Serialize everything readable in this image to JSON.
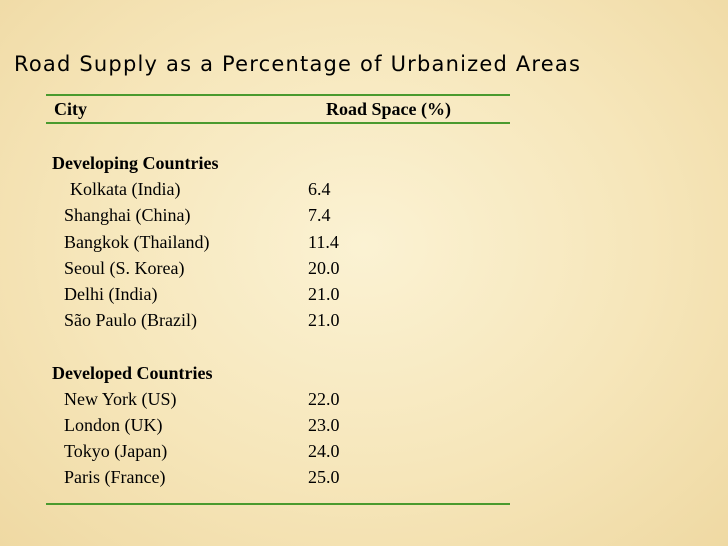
{
  "title": "Road Supply as a Percentage of Urbanized Areas",
  "table": {
    "headers": {
      "city": "City",
      "road_space": "Road Space (%)"
    },
    "groups": [
      {
        "label": "Developing Countries",
        "rows": [
          {
            "city": "Kolkata (India)",
            "value": "6.4"
          },
          {
            "city": "Shanghai (China)",
            "value": "7.4"
          },
          {
            "city": "Bangkok (Thailand)",
            "value": "11.4"
          },
          {
            "city": "Seoul (S. Korea)",
            "value": "20.0"
          },
          {
            "city": "Delhi (India)",
            "value": "21.0"
          },
          {
            "city": "São Paulo (Brazil)",
            "value": "21.0"
          }
        ]
      },
      {
        "label": "Developed Countries",
        "rows": [
          {
            "city": "New York (US)",
            "value": "22.0"
          },
          {
            "city": "London (UK)",
            "value": "23.0"
          },
          {
            "city": "Tokyo (Japan)",
            "value": "24.0"
          },
          {
            "city": "Paris (France)",
            "value": "25.0"
          }
        ]
      }
    ]
  },
  "colors": {
    "rule": "#4a9a2e",
    "background": "#f6e6ba"
  }
}
